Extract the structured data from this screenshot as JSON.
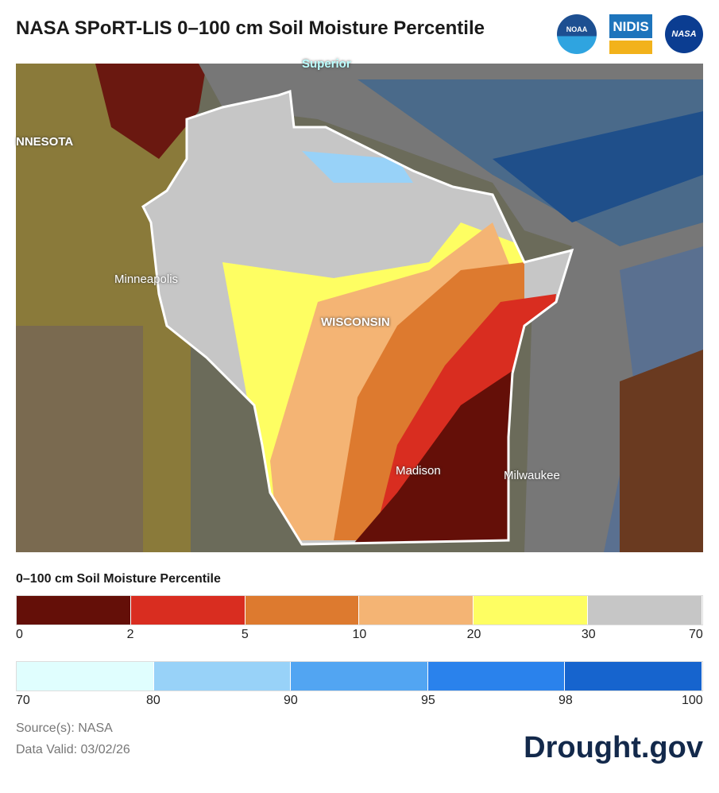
{
  "title": "NASA SPoRT-LIS 0–100 cm Soil Moisture Percentile",
  "logos": {
    "noaa": "NOAA",
    "nidis": "NIDIS",
    "nasa": "NASA"
  },
  "map": {
    "labels": {
      "superior": "Superior",
      "minnesota": "NNESOTA",
      "minneapolis": "Minneapolis",
      "wisconsin": "WISCONSIN",
      "madison": "Madison",
      "milwaukee": "Milwaukee"
    }
  },
  "legend": {
    "title": "0–100 cm Soil Moisture Percentile",
    "dry_colors": [
      "#640f08",
      "#d92d20",
      "#dd7a2f",
      "#f4b474",
      "#fefe62",
      "#c6c6c6"
    ],
    "dry_ticks": [
      "0",
      "2",
      "5",
      "10",
      "20",
      "30",
      "70"
    ],
    "wet_colors": [
      "#e0fefe",
      "#98d2f8",
      "#52a5f2",
      "#2a82ec",
      "#1664ce"
    ],
    "wet_ticks": [
      "70",
      "80",
      "90",
      "95",
      "98",
      "100"
    ]
  },
  "source": "Source(s): NASA",
  "valid": "Data Valid: 03/02/26",
  "brand": "Drought.gov"
}
